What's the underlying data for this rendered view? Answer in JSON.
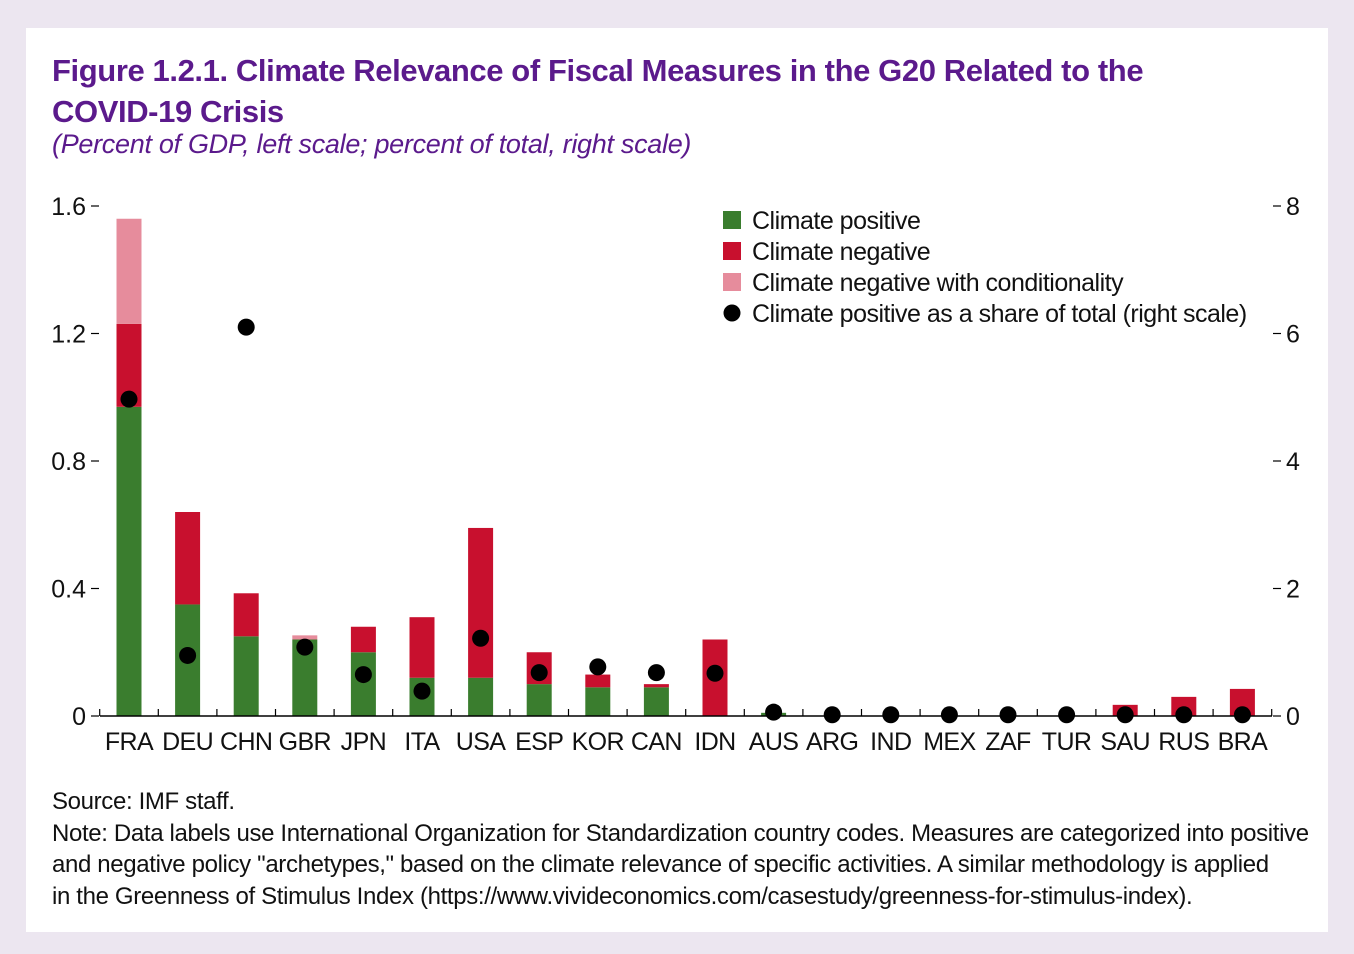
{
  "title": "Figure 1.2.1. Climate Relevance of Fiscal Measures in the G20 Related to the COVID-19 Crisis",
  "subtitle": "(Percent of GDP, left scale; percent of total, right scale)",
  "colors": {
    "climate_positive": "#3a7d2e",
    "climate_negative": "#c8102e",
    "climate_negative_conditional": "#e68c9c",
    "share_dot": "#000000",
    "title": "#5b1a8c"
  },
  "chart_data": {
    "type": "bar",
    "stacked": true,
    "categories": [
      "FRA",
      "DEU",
      "CHN",
      "GBR",
      "JPN",
      "ITA",
      "USA",
      "ESP",
      "KOR",
      "CAN",
      "IDN",
      "AUS",
      "ARG",
      "IND",
      "MEX",
      "ZAF",
      "TUR",
      "SAU",
      "RUS",
      "BRA"
    ],
    "series": [
      {
        "name": "Climate positive",
        "axis": "left",
        "values": [
          0.97,
          0.35,
          0.25,
          0.24,
          0.2,
          0.12,
          0.12,
          0.1,
          0.09,
          0.09,
          0.0,
          0.01,
          0.0,
          0.0,
          0.0,
          0.0,
          0.0,
          0.0,
          0.0,
          0.0
        ]
      },
      {
        "name": "Climate negative",
        "axis": "left",
        "values": [
          0.26,
          0.29,
          0.135,
          0.0,
          0.08,
          0.19,
          0.47,
          0.1,
          0.04,
          0.01,
          0.24,
          0.0,
          0.0,
          0.0,
          0.0,
          0.0,
          0.0,
          0.035,
          0.06,
          0.085
        ]
      },
      {
        "name": "Climate negative with conditionality",
        "axis": "left",
        "values": [
          0.33,
          0.0,
          0.0,
          0.013,
          0.0,
          0.0,
          0.0,
          0.0,
          0.0,
          0.0,
          0.0,
          0.0,
          0.0,
          0.0,
          0.0,
          0.0,
          0.0,
          0.0,
          0.0,
          0.0
        ]
      },
      {
        "name": "Climate positive as a share of total (right scale)",
        "axis": "right",
        "type": "scatter",
        "values": [
          4.97,
          0.95,
          6.1,
          1.08,
          0.65,
          0.39,
          1.22,
          0.68,
          0.77,
          0.68,
          0.67,
          0.06,
          0.02,
          0.02,
          0.02,
          0.02,
          0.02,
          0.02,
          0.02,
          0.02
        ]
      }
    ],
    "y_left": {
      "ylim": [
        0,
        1.6
      ],
      "ticks": [
        0,
        0.4,
        0.8,
        1.2,
        1.6
      ],
      "tick_labels": [
        "0",
        "0.4",
        "0.8",
        "1.2",
        "1.6"
      ]
    },
    "y_right": {
      "ylim": [
        0,
        8
      ],
      "ticks": [
        0,
        2,
        4,
        6,
        8
      ],
      "tick_labels": [
        "0",
        "2",
        "4",
        "6",
        "8"
      ]
    },
    "legend": {
      "position": "top-right",
      "entries": [
        "Climate positive",
        "Climate negative",
        "Climate negative with conditionality",
        "Climate positive as a share of total (right scale)"
      ]
    },
    "grid": false
  },
  "notes": {
    "source": "Source: IMF staff.",
    "note_lines": [
      "Note: Data labels use International Organization for Standardization country codes. Measures are categorized into positive",
      "and negative policy \"archetypes,\" based on the climate relevance of specific activities. A similar methodology is applied",
      "in the Greenness of Stimulus Index (https://www.vivideconomics.com/casestudy/greenness-for-stimulus-index)."
    ]
  }
}
